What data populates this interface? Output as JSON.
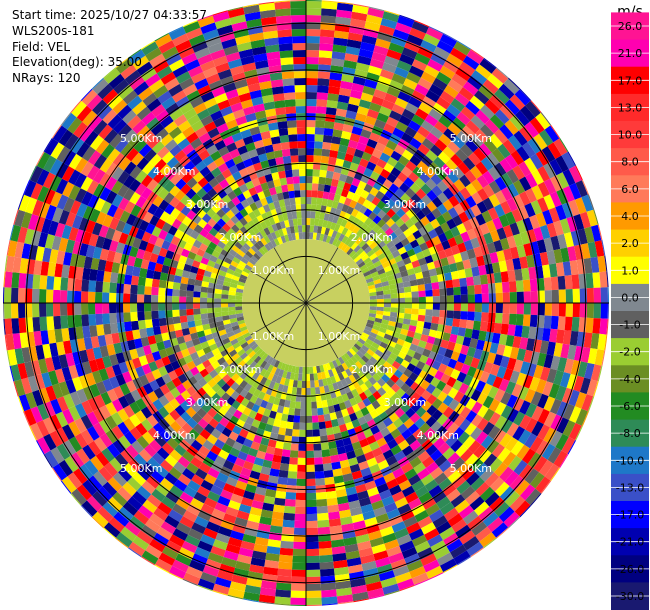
{
  "info": {
    "start_time": "Start time: 2025/10/27 04:33:57",
    "site": "WLS200s-181",
    "field": "Field: VEL",
    "elevation": "Elevation(deg): 35.00",
    "nrays": "NRays: 120"
  },
  "chart_data": {
    "type": "ppi",
    "field": "VEL",
    "nrays": 120,
    "max_range_km": 6.5,
    "ring_labels": [
      {
        "range_km": 1,
        "text": "1.00Km"
      },
      {
        "range_km": 2,
        "text": "2.00Km"
      },
      {
        "range_km": 3,
        "text": "3.00Km"
      },
      {
        "range_km": 4,
        "text": "4.00Km"
      },
      {
        "range_km": 5,
        "text": "5.00Km"
      }
    ],
    "colorbar": {
      "unit": "m/s",
      "ticks": [
        "26.0",
        "21.0",
        "17.0",
        "13.0",
        "10.0",
        "8.0",
        "6.0",
        "4.0",
        "2.0",
        "1.0",
        "0.0",
        "-1.0",
        "-2.0",
        "-4.0",
        "-6.0",
        "-8.0",
        "-10.0",
        "-13.0",
        "-17.0",
        "-21.0",
        "-26.0",
        "-30.0"
      ],
      "colors": [
        "#ff1493",
        "#ff00b0",
        "#ff0000",
        "#ff2a2a",
        "#ff3a3a",
        "#ff5a4a",
        "#ff7a5a",
        "#ff9a00",
        "#ffd000",
        "#ffff00",
        "#808890",
        "#606060",
        "#9acd32",
        "#6b8e23",
        "#228b22",
        "#2e8b57",
        "#1e78c8",
        "#3a50c8",
        "#0000ff",
        "#0000b0",
        "#000080",
        "#191970"
      ]
    }
  }
}
